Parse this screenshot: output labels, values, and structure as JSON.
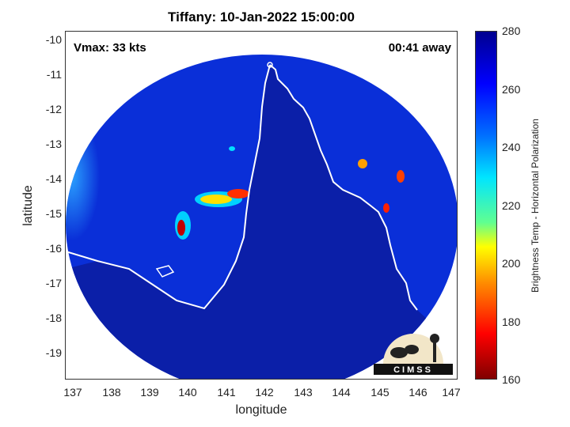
{
  "title": "Tiffany: 10-Jan-2022 15:00:00",
  "annotations": {
    "vmax": "Vmax: 33 kts",
    "away": "00:41 away"
  },
  "axes": {
    "xlabel": "longitude",
    "ylabel": "latitude",
    "xticks": [
      "137",
      "138",
      "139",
      "140",
      "141",
      "142",
      "143",
      "144",
      "145",
      "146",
      "147"
    ],
    "yticks": [
      "-10",
      "-11",
      "-12",
      "-13",
      "-14",
      "-15",
      "-16",
      "-17",
      "-18",
      "-19"
    ],
    "xlim": [
      136.9,
      147.1
    ],
    "ylim": [
      -19.8,
      -9.8
    ]
  },
  "colorbar": {
    "label": "Brightness Temp - Horizontal Polarization",
    "ticks": [
      "280",
      "260",
      "240",
      "220",
      "200",
      "180",
      "160"
    ],
    "range": [
      160,
      280
    ],
    "colormap": "jet"
  },
  "logo": {
    "text": "CIMSS"
  },
  "colors": {
    "ocean_blue": "#0a2fd8",
    "land_blue": "#0b1fa8",
    "coastline": "#ffffff",
    "convection_red": "#c00000"
  }
}
